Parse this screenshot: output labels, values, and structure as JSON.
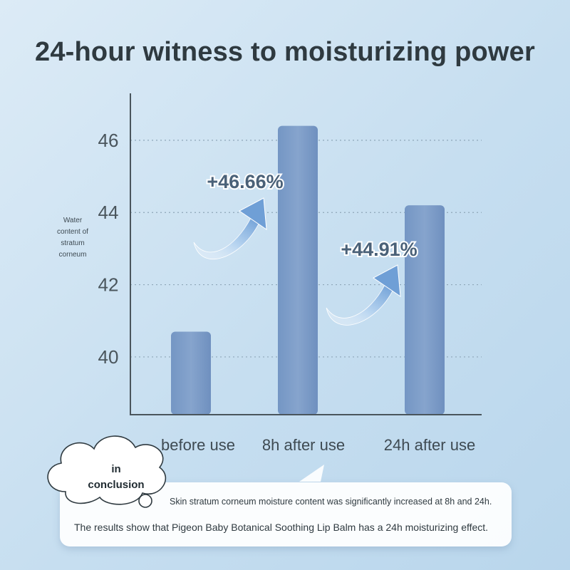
{
  "chart_data": {
    "type": "bar",
    "title": "24-hour witness to moisturizing power",
    "ylabel": "Water content of stratum corneum",
    "categories": [
      "before use",
      "8h after use",
      "24h after use"
    ],
    "values": [
      40.7,
      46.4,
      44.2
    ],
    "ylim": [
      38.4,
      47.3
    ],
    "yticks": [
      40,
      42,
      44,
      46
    ],
    "grid": true,
    "annotations": [
      "+46.66%",
      "+44.91%"
    ],
    "bar_color": "#7f9fc9"
  },
  "conclusion": {
    "label_line1": "in",
    "label_line2": "conclusion",
    "summary": "Skin stratum corneum moisture content was significantly increased at 8h and 24h.",
    "body": "The results show that Pigeon Baby Botanical Soothing Lip Balm has a 24h moisturizing effect."
  }
}
